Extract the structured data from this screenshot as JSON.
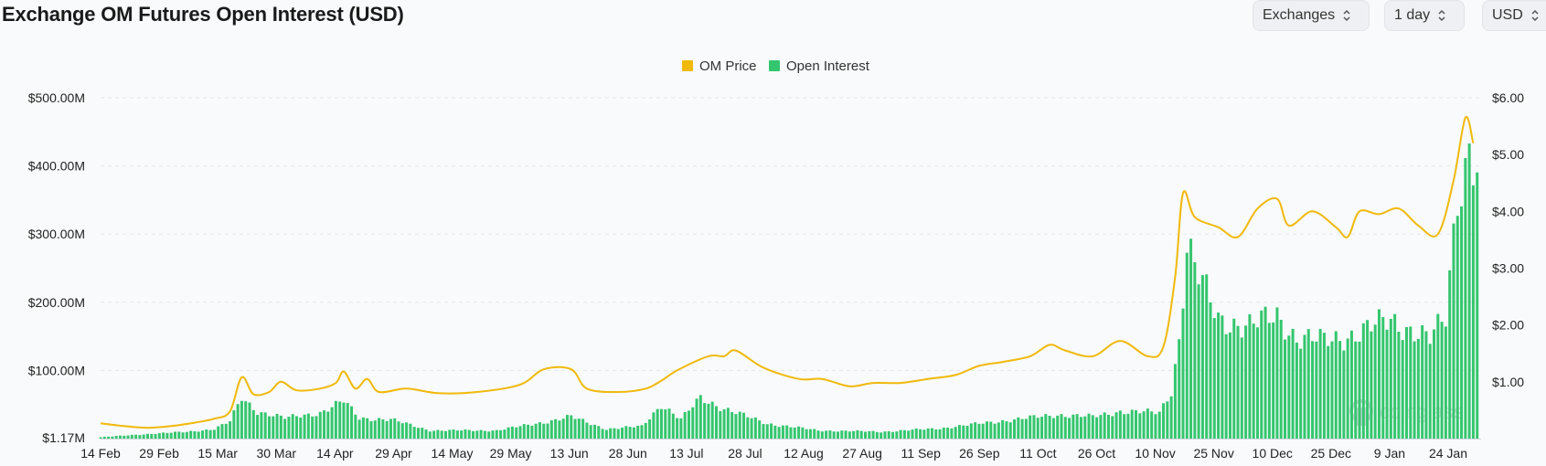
{
  "title": "Exchange OM Futures Open Interest (USD)",
  "controls": {
    "exchanges": "Exchanges",
    "interval": "1 day",
    "currency": "USD"
  },
  "watermark": "coinglass",
  "chart_data": {
    "type": "bar+line",
    "title": "Exchange OM Futures Open Interest (USD)",
    "legend_position": "top-center",
    "grid": true,
    "x_tick_labels": [
      "14 Feb",
      "29 Feb",
      "15 Mar",
      "30 Mar",
      "14 Apr",
      "29 Apr",
      "14 May",
      "29 May",
      "13 Jun",
      "28 Jun",
      "13 Jul",
      "28 Jul",
      "12 Aug",
      "27 Aug",
      "11 Sep",
      "26 Sep",
      "11 Oct",
      "26 Oct",
      "10 Nov",
      "25 Nov",
      "10 Dec",
      "25 Dec",
      "9 Jan",
      "24 Jan"
    ],
    "y_left": {
      "tick_labels": [
        "$1.17M",
        "$100.00M",
        "$200.00M",
        "$300.00M",
        "$400.00M",
        "$500.00M"
      ],
      "tick_values": [
        1.17,
        100,
        200,
        300,
        400,
        500
      ],
      "range": [
        0,
        500
      ],
      "unit": "USD millions"
    },
    "y_right": {
      "tick_labels": [
        "$1.00",
        "$2.00",
        "$3.00",
        "$4.00",
        "$5.00",
        "$6.00"
      ],
      "tick_values": [
        1,
        2,
        3,
        4,
        5,
        6
      ],
      "range": [
        0,
        6
      ],
      "unit": "USD"
    },
    "series": [
      {
        "name": "OM Price",
        "type": "line",
        "color": "#f0b90b",
        "axis": "right",
        "points": [
          [
            "2024-02-14",
            0.27
          ],
          [
            "2024-02-20",
            0.22
          ],
          [
            "2024-02-26",
            0.19
          ],
          [
            "2024-03-03",
            0.22
          ],
          [
            "2024-03-09",
            0.28
          ],
          [
            "2024-03-14",
            0.35
          ],
          [
            "2024-03-18",
            0.48
          ],
          [
            "2024-03-21",
            1.08
          ],
          [
            "2024-03-24",
            0.78
          ],
          [
            "2024-03-28",
            0.82
          ],
          [
            "2024-03-31",
            1.0
          ],
          [
            "2024-04-04",
            0.85
          ],
          [
            "2024-04-10",
            0.88
          ],
          [
            "2024-04-14",
            0.98
          ],
          [
            "2024-04-16",
            1.18
          ],
          [
            "2024-04-19",
            0.88
          ],
          [
            "2024-04-22",
            1.05
          ],
          [
            "2024-04-25",
            0.82
          ],
          [
            "2024-05-02",
            0.88
          ],
          [
            "2024-05-10",
            0.8
          ],
          [
            "2024-05-20",
            0.82
          ],
          [
            "2024-05-31",
            0.95
          ],
          [
            "2024-06-06",
            1.22
          ],
          [
            "2024-06-13",
            1.22
          ],
          [
            "2024-06-17",
            0.88
          ],
          [
            "2024-06-25",
            0.82
          ],
          [
            "2024-07-02",
            0.88
          ],
          [
            "2024-07-06",
            1.02
          ],
          [
            "2024-07-10",
            1.2
          ],
          [
            "2024-07-18",
            1.45
          ],
          [
            "2024-07-22",
            1.45
          ],
          [
            "2024-07-25",
            1.55
          ],
          [
            "2024-08-01",
            1.25
          ],
          [
            "2024-08-10",
            1.05
          ],
          [
            "2024-08-16",
            1.05
          ],
          [
            "2024-08-23",
            0.92
          ],
          [
            "2024-08-29",
            0.98
          ],
          [
            "2024-09-05",
            0.98
          ],
          [
            "2024-09-12",
            1.05
          ],
          [
            "2024-09-19",
            1.12
          ],
          [
            "2024-09-25",
            1.28
          ],
          [
            "2024-10-01",
            1.35
          ],
          [
            "2024-10-08",
            1.45
          ],
          [
            "2024-10-13",
            1.65
          ],
          [
            "2024-10-17",
            1.55
          ],
          [
            "2024-10-24",
            1.45
          ],
          [
            "2024-10-31",
            1.72
          ],
          [
            "2024-11-07",
            1.45
          ],
          [
            "2024-11-11",
            1.62
          ],
          [
            "2024-11-14",
            2.85
          ],
          [
            "2024-11-16",
            4.32
          ],
          [
            "2024-11-19",
            3.9
          ],
          [
            "2024-11-25",
            3.72
          ],
          [
            "2024-11-30",
            3.55
          ],
          [
            "2024-12-05",
            4.05
          ],
          [
            "2024-12-10",
            4.22
          ],
          [
            "2024-12-13",
            3.75
          ],
          [
            "2024-12-19",
            4.0
          ],
          [
            "2024-12-25",
            3.72
          ],
          [
            "2024-12-28",
            3.55
          ],
          [
            "2024-12-31",
            4.0
          ],
          [
            "2025-01-05",
            3.95
          ],
          [
            "2025-01-10",
            4.05
          ],
          [
            "2025-01-15",
            3.75
          ],
          [
            "2025-01-20",
            3.6
          ],
          [
            "2025-01-24",
            4.55
          ],
          [
            "2025-01-27",
            5.65
          ],
          [
            "2025-01-29",
            5.2
          ]
        ]
      },
      {
        "name": "Open Interest",
        "type": "bar",
        "color": "#34c66e",
        "axis": "left",
        "points": [
          [
            "2024-02-14",
            2
          ],
          [
            "2024-02-24",
            6
          ],
          [
            "2024-03-07",
            10
          ],
          [
            "2024-03-14",
            14
          ],
          [
            "2024-03-18",
            25
          ],
          [
            "2024-03-21",
            60
          ],
          [
            "2024-03-25",
            40
          ],
          [
            "2024-04-01",
            30
          ],
          [
            "2024-04-10",
            38
          ],
          [
            "2024-04-16",
            55
          ],
          [
            "2024-04-20",
            30
          ],
          [
            "2024-04-28",
            28
          ],
          [
            "2024-05-08",
            12
          ],
          [
            "2024-05-25",
            12
          ],
          [
            "2024-06-06",
            24
          ],
          [
            "2024-06-13",
            32
          ],
          [
            "2024-06-22",
            14
          ],
          [
            "2024-07-01",
            18
          ],
          [
            "2024-07-06",
            50
          ],
          [
            "2024-07-11",
            28
          ],
          [
            "2024-07-16",
            60
          ],
          [
            "2024-07-22",
            44
          ],
          [
            "2024-08-02",
            22
          ],
          [
            "2024-08-15",
            12
          ],
          [
            "2024-08-31",
            10
          ],
          [
            "2024-09-15",
            15
          ],
          [
            "2024-10-01",
            26
          ],
          [
            "2024-10-15",
            35
          ],
          [
            "2024-10-24",
            32
          ],
          [
            "2024-10-31",
            40
          ],
          [
            "2024-11-10",
            38
          ],
          [
            "2024-11-13",
            70
          ],
          [
            "2024-11-15",
            145
          ],
          [
            "2024-11-17",
            285
          ],
          [
            "2024-11-19",
            250
          ],
          [
            "2024-11-25",
            175
          ],
          [
            "2024-12-03",
            165
          ],
          [
            "2024-12-10",
            180
          ],
          [
            "2024-12-15",
            148
          ],
          [
            "2024-12-22",
            143
          ],
          [
            "2024-12-31",
            155
          ],
          [
            "2025-01-08",
            175
          ],
          [
            "2025-01-18",
            145
          ],
          [
            "2025-01-22",
            178
          ],
          [
            "2025-01-25",
            365
          ],
          [
            "2025-01-27",
            400
          ],
          [
            "2025-01-28",
            430
          ],
          [
            "2025-01-30",
            395
          ]
        ]
      }
    ]
  }
}
